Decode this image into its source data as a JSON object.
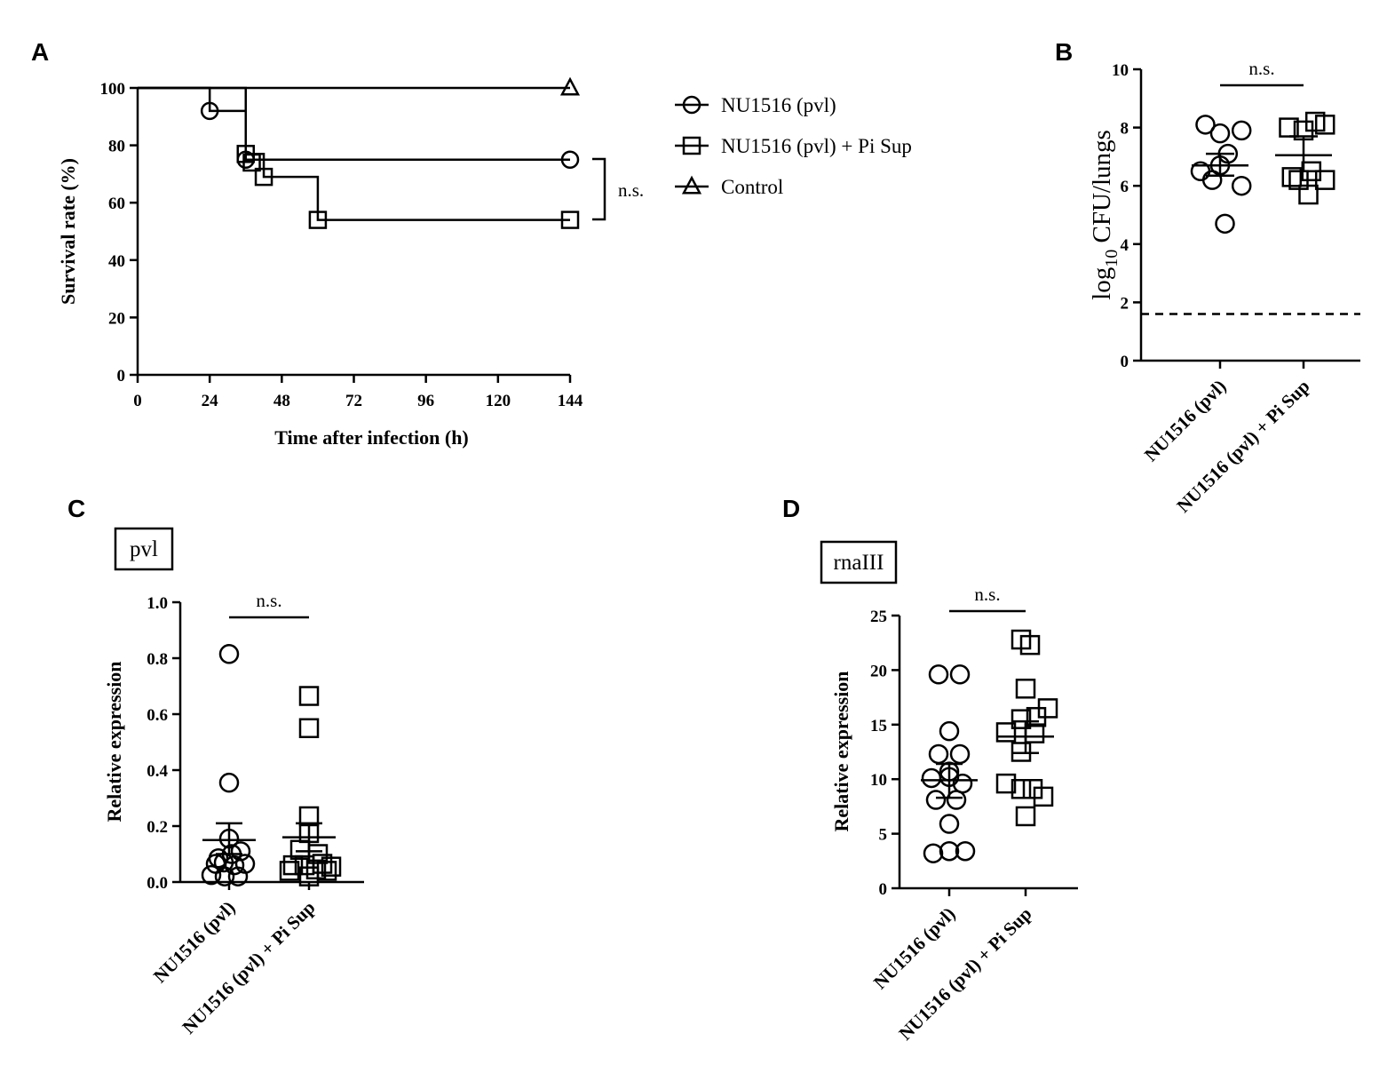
{
  "chart_data": [
    {
      "panel": "A",
      "type": "line",
      "subtype": "kaplan-meier",
      "xlabel": "Time after infection (h)",
      "ylabel": "Survival rate (%)",
      "xlim": [
        0,
        144
      ],
      "ylim": [
        0,
        100
      ],
      "xticks": [
        "0",
        "24",
        "48",
        "72",
        "96",
        "120",
        "144"
      ],
      "yticks": [
        "0",
        "20",
        "40",
        "60",
        "80",
        "100"
      ],
      "series": [
        {
          "name": "NU1516 (pvl)",
          "marker": "circle",
          "steps": [
            [
              0,
              100
            ],
            [
              24,
              92
            ],
            [
              36,
              75
            ],
            [
              144,
              75
            ]
          ],
          "censor": [
            [
              24,
              92
            ],
            [
              36,
              75
            ],
            [
              144,
              75
            ]
          ]
        },
        {
          "name": "NU1516 (pvl) + Pi Sup",
          "marker": "square",
          "steps": [
            [
              0,
              100
            ],
            [
              36,
              77
            ],
            [
              42,
              69
            ],
            [
              60,
              54
            ],
            [
              144,
              54
            ]
          ],
          "censor": [
            [
              36,
              77
            ],
            [
              38,
              74
            ],
            [
              42,
              69
            ],
            [
              60,
              54
            ],
            [
              144,
              54
            ]
          ]
        },
        {
          "name": "Control",
          "marker": "triangle",
          "steps": [
            [
              0,
              100
            ],
            [
              144,
              100
            ]
          ],
          "censor": [
            [
              144,
              100
            ]
          ]
        }
      ],
      "annotation": "n.s."
    },
    {
      "panel": "B",
      "type": "scatter",
      "subtype": "dot-plot",
      "ylabel_main": "log",
      "ylabel_sub": "10",
      "ylabel_rest": " CFU/lungs",
      "ylim": [
        0,
        10
      ],
      "yticks": [
        "0",
        "2",
        "4",
        "6",
        "8",
        "10"
      ],
      "categories": [
        "NU1516 (pvl)",
        "NU1516 (pvl) + Pi Sup"
      ],
      "series": [
        {
          "name": "NU1516 (pvl)",
          "marker": "circle",
          "points": [
            [
              -0.15,
              8.1
            ],
            [
              0.0,
              7.8
            ],
            [
              0.22,
              7.9
            ],
            [
              0.08,
              7.1
            ],
            [
              -0.2,
              6.5
            ],
            [
              0.0,
              6.7
            ],
            [
              0.22,
              6.0
            ],
            [
              -0.08,
              6.2
            ],
            [
              0.05,
              4.7
            ]
          ],
          "mean": 6.7,
          "sem": [
            6.35,
            7.1
          ]
        },
        {
          "name": "NU1516 (pvl) + Pi Sup",
          "marker": "square",
          "points": [
            [
              -0.15,
              8.0
            ],
            [
              0.0,
              7.9
            ],
            [
              0.12,
              8.2
            ],
            [
              0.22,
              8.1
            ],
            [
              -0.12,
              6.3
            ],
            [
              0.08,
              6.5
            ],
            [
              0.22,
              6.2
            ],
            [
              -0.05,
              6.2
            ],
            [
              0.05,
              5.7
            ]
          ],
          "mean": 7.05,
          "sem": [
            6.5,
            7.7
          ]
        }
      ],
      "detection_limit": 1.6,
      "annotation": "n.s."
    },
    {
      "panel": "C",
      "type": "scatter",
      "subtype": "dot-plot",
      "title": "pvl",
      "ylabel": "Relative expression",
      "ylim": [
        0,
        1.0
      ],
      "yticks": [
        "0.0",
        "0.2",
        "0.4",
        "0.6",
        "0.8",
        "1.0"
      ],
      "categories": [
        "NU1516 (pvl)",
        "NU1516 (pvl) + Pi Sup"
      ],
      "series": [
        {
          "name": "NU1516 (pvl)",
          "marker": "circle",
          "points": [
            [
              0.0,
              0.815
            ],
            [
              0.0,
              0.355
            ],
            [
              0.0,
              0.155
            ],
            [
              -0.12,
              0.085
            ],
            [
              0.13,
              0.11
            ],
            [
              -0.06,
              0.07
            ],
            [
              0.06,
              0.06
            ],
            [
              0.18,
              0.065
            ],
            [
              -0.2,
              0.025
            ],
            [
              -0.05,
              0.02
            ],
            [
              0.1,
              0.02
            ],
            [
              -0.15,
              0.065
            ],
            [
              0.03,
              0.1
            ]
          ],
          "mean": 0.15,
          "sem": [
            0.1,
            0.21
          ]
        },
        {
          "name": "NU1516 (pvl) + Pi Sup",
          "marker": "square",
          "points": [
            [
              0.0,
              0.665
            ],
            [
              0.0,
              0.55
            ],
            [
              0.0,
              0.235
            ],
            [
              0.0,
              0.175
            ],
            [
              -0.1,
              0.115
            ],
            [
              0.1,
              0.1
            ],
            [
              -0.18,
              0.06
            ],
            [
              0.15,
              0.065
            ],
            [
              0.25,
              0.055
            ],
            [
              -0.05,
              0.06
            ],
            [
              0.08,
              0.045
            ],
            [
              0.2,
              0.04
            ],
            [
              -0.22,
              0.04
            ],
            [
              0.0,
              0.02
            ]
          ],
          "mean": 0.16,
          "sem": [
            0.11,
            0.21
          ]
        }
      ],
      "annotation": "n.s."
    },
    {
      "panel": "D",
      "type": "scatter",
      "subtype": "dot-plot",
      "title": "rnaIII",
      "ylabel": "Relative expression",
      "ylim": [
        0,
        25
      ],
      "yticks": [
        "0",
        "5",
        "10",
        "15",
        "20",
        "25"
      ],
      "categories": [
        "NU1516 (pvl)",
        "NU1516 (pvl) + Pi Sup"
      ],
      "series": [
        {
          "name": "NU1516 (pvl)",
          "marker": "circle",
          "points": [
            [
              -0.12,
              19.6
            ],
            [
              0.12,
              19.6
            ],
            [
              0.0,
              14.4
            ],
            [
              -0.12,
              12.3
            ],
            [
              0.12,
              12.3
            ],
            [
              0.0,
              10.7
            ],
            [
              -0.2,
              10.1
            ],
            [
              0.0,
              10.2
            ],
            [
              0.15,
              9.6
            ],
            [
              -0.15,
              8.1
            ],
            [
              0.08,
              8.1
            ],
            [
              0.0,
              5.9
            ],
            [
              -0.18,
              3.2
            ],
            [
              0.18,
              3.4
            ],
            [
              0.0,
              3.4
            ]
          ],
          "mean": 9.9,
          "sem": [
            8.3,
            11.4
          ]
        },
        {
          "name": "NU1516 (pvl) + Pi Sup",
          "marker": "square",
          "points": [
            [
              -0.05,
              22.8
            ],
            [
              0.05,
              22.3
            ],
            [
              0.0,
              18.3
            ],
            [
              0.25,
              16.5
            ],
            [
              -0.05,
              15.5
            ],
            [
              0.12,
              15.7
            ],
            [
              -0.22,
              14.3
            ],
            [
              0.1,
              14.2
            ],
            [
              -0.05,
              12.5
            ],
            [
              -0.22,
              9.6
            ],
            [
              -0.05,
              9.1
            ],
            [
              0.08,
              9.1
            ],
            [
              0.2,
              8.4
            ],
            [
              0.0,
              6.6
            ]
          ],
          "mean": 13.9,
          "sem": [
            12.4,
            15.3
          ]
        }
      ],
      "annotation": "n.s."
    }
  ]
}
